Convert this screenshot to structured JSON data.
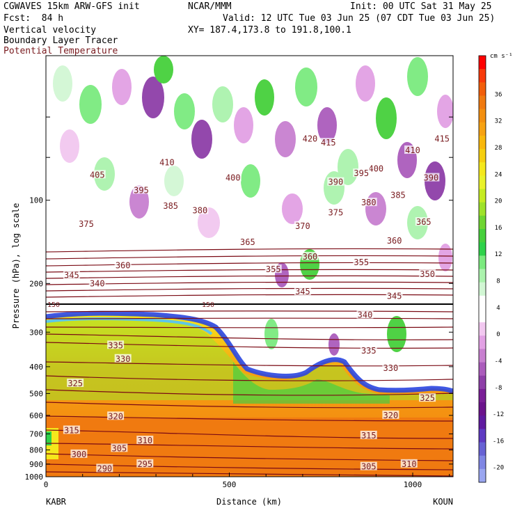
{
  "header": {
    "line1_left": "CGWAVES 15km ARW-GFS init",
    "line1_mid": "NCAR/MMM",
    "line1_right": "Init: 00 UTC Sat 31 May 25",
    "line2_left": "Fcst:  84 h",
    "line2_right": "Valid: 12 UTC Tue 03 Jun 25 (07 CDT Tue 03 Jun 25)",
    "line3_left": "Vertical velocity",
    "line3_right": "XY= 187.4,173.8 to 191.8,100.1",
    "line4_left": "Boundary Layer Tracer",
    "line5_left": "Potential Temperature"
  },
  "colors": {
    "theta_line": "#7a0a14",
    "theta_label": "#7a1c20",
    "tropopause": "#000000"
  },
  "chart_data": {
    "type": "heatmap",
    "ylabel": "Pressure (hPa), log scale",
    "xlabel": "Distance (km)",
    "x_range": [
      0,
      1110
    ],
    "y_range_hpa": [
      1000,
      30
    ],
    "y_scale": "log",
    "x_ticks": [
      "0",
      "500",
      "1000"
    ],
    "x_tick_values": [
      0,
      500,
      1000
    ],
    "y_ticks": [
      "100",
      "200",
      "300",
      "400",
      "500",
      "600",
      "700",
      "800",
      "900",
      "1000"
    ],
    "y_tick_values": [
      100,
      200,
      300,
      400,
      500,
      600,
      700,
      800,
      900,
      1000
    ],
    "endpoint_left": "KABR",
    "endpoint_right": "KOUN",
    "colorbar": {
      "unit": "cm s⁻¹",
      "position": "right",
      "labels": [
        "36",
        "32",
        "28",
        "24",
        "20",
        "16",
        "12",
        "8",
        "4",
        "0",
        "-4",
        "-8",
        "-12",
        "-16",
        "-20"
      ],
      "colors": [
        "#ff0000",
        "#f83a0a",
        "#f25e0a",
        "#f07a10",
        "#f38f10",
        "#f7a212",
        "#f9b80c",
        "#f6cf10",
        "#f5e81c",
        "#eaf22a",
        "#c6ec22",
        "#9ee22a",
        "#6fd532",
        "#46d03c",
        "#2ed24a",
        "#7bea7f",
        "#abf3ad",
        "#d2f7d4",
        "#ffffff",
        "#ffffff",
        "#f2c8f0",
        "#e2a1e4",
        "#c880d0",
        "#ab5cbc",
        "#8e3fa8",
        "#7a1f97",
        "#6b138c",
        "#5f1aa0",
        "#5e3ac2",
        "#6762d4",
        "#7f86e4",
        "#9aa6f0"
      ]
    },
    "theta_labels": [
      {
        "text": "420",
        "x": 720,
        "p": 60
      },
      {
        "text": "415",
        "x": 770,
        "p": 62
      },
      {
        "text": "415",
        "x": 1080,
        "p": 60
      },
      {
        "text": "410",
        "x": 330,
        "p": 73
      },
      {
        "text": "410",
        "x": 1000,
        "p": 66
      },
      {
        "text": "405",
        "x": 140,
        "p": 81
      },
      {
        "text": "400",
        "x": 510,
        "p": 83
      },
      {
        "text": "400",
        "x": 900,
        "p": 77
      },
      {
        "text": "395",
        "x": 260,
        "p": 92
      },
      {
        "text": "395",
        "x": 860,
        "p": 80
      },
      {
        "text": "390",
        "x": 790,
        "p": 86
      },
      {
        "text": "390",
        "x": 1050,
        "p": 83
      },
      {
        "text": "385",
        "x": 340,
        "p": 105
      },
      {
        "text": "385",
        "x": 960,
        "p": 96
      },
      {
        "text": "380",
        "x": 420,
        "p": 109
      },
      {
        "text": "380",
        "x": 880,
        "p": 102
      },
      {
        "text": "375",
        "x": 110,
        "p": 122
      },
      {
        "text": "375",
        "x": 790,
        "p": 111
      },
      {
        "text": "370",
        "x": 700,
        "p": 124
      },
      {
        "text": "365",
        "x": 1030,
        "p": 120
      },
      {
        "text": "365",
        "x": 550,
        "p": 142
      },
      {
        "text": "360",
        "x": 210,
        "p": 172
      },
      {
        "text": "360",
        "x": 720,
        "p": 160
      },
      {
        "text": "360",
        "x": 950,
        "p": 140
      },
      {
        "text": "355",
        "x": 620,
        "p": 178
      },
      {
        "text": "355",
        "x": 860,
        "p": 168
      },
      {
        "text": "350",
        "x": 1040,
        "p": 185
      },
      {
        "text": "345",
        "x": 70,
        "p": 187
      },
      {
        "text": "345",
        "x": 700,
        "p": 214
      },
      {
        "text": "345",
        "x": 950,
        "p": 222
      },
      {
        "text": "340",
        "x": 140,
        "p": 200
      },
      {
        "text": "340",
        "x": 870,
        "p": 260
      },
      {
        "text": "335",
        "x": 190,
        "p": 335
      },
      {
        "text": "335",
        "x": 880,
        "p": 350
      },
      {
        "text": "330",
        "x": 210,
        "p": 375
      },
      {
        "text": "330",
        "x": 940,
        "p": 405
      },
      {
        "text": "325",
        "x": 80,
        "p": 460
      },
      {
        "text": "325",
        "x": 1040,
        "p": 520
      },
      {
        "text": "320",
        "x": 190,
        "p": 605
      },
      {
        "text": "320",
        "x": 940,
        "p": 600
      },
      {
        "text": "315",
        "x": 70,
        "p": 680
      },
      {
        "text": "315",
        "x": 880,
        "p": 710
      },
      {
        "text": "310",
        "x": 270,
        "p": 740
      },
      {
        "text": "310",
        "x": 990,
        "p": 900
      },
      {
        "text": "305",
        "x": 200,
        "p": 790
      },
      {
        "text": "305",
        "x": 880,
        "p": 920
      },
      {
        "text": "300",
        "x": 90,
        "p": 830
      },
      {
        "text": "295",
        "x": 270,
        "p": 900
      },
      {
        "text": "290",
        "x": 160,
        "p": 935
      }
    ],
    "tropopause_marker": "150",
    "tropopause_marker2": "150"
  }
}
